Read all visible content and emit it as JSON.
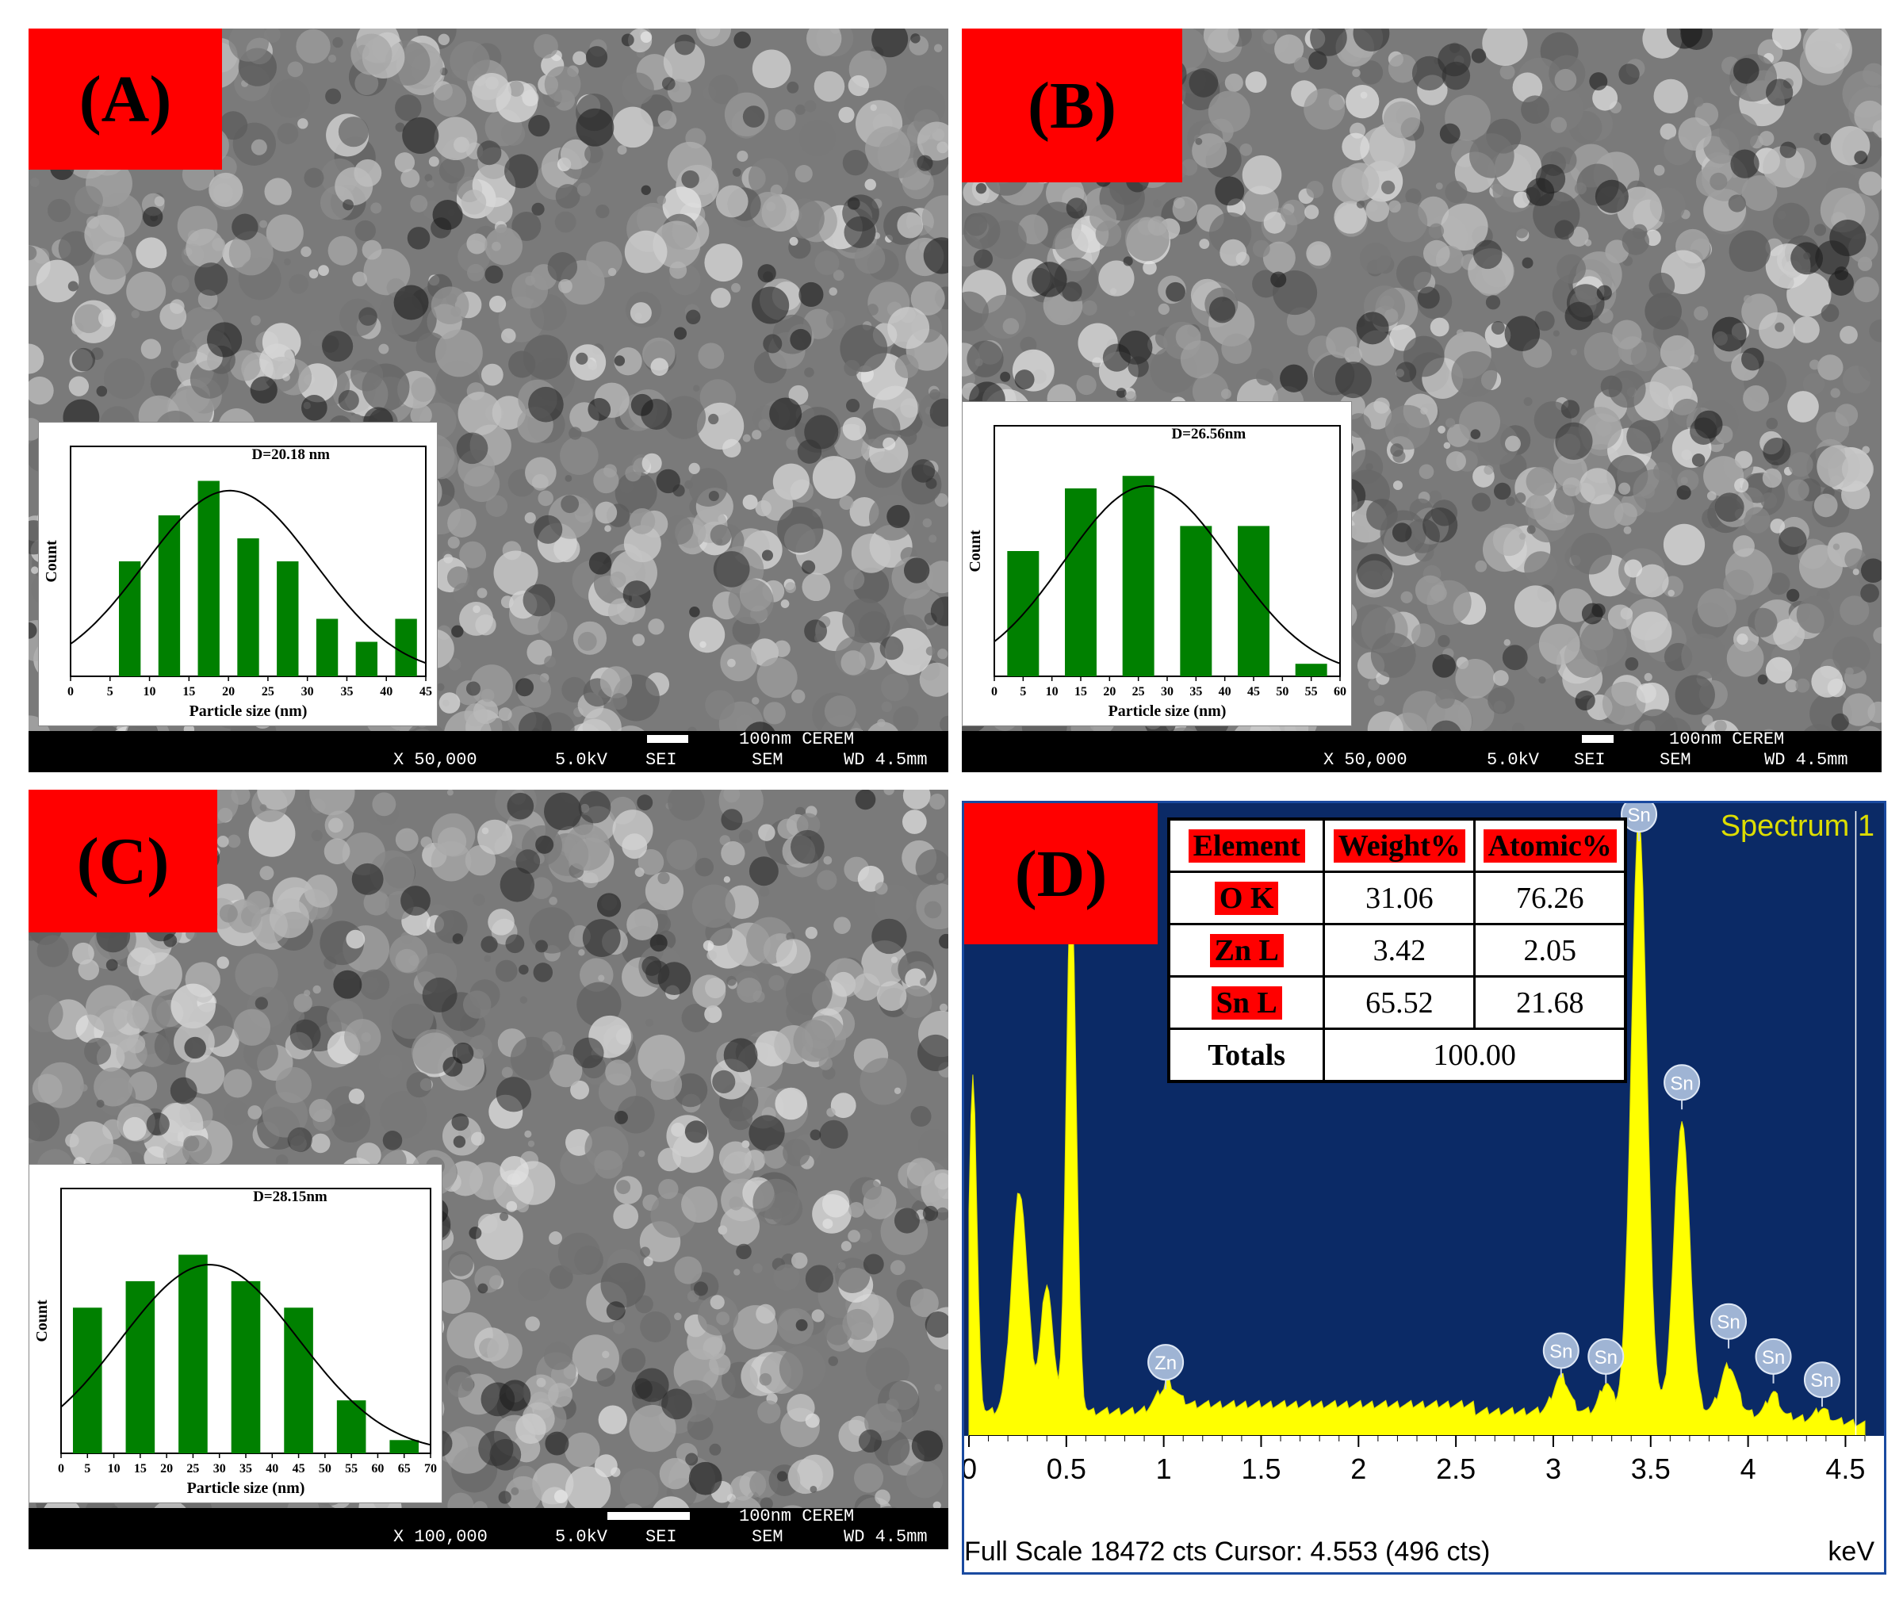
{
  "panels": {
    "A": {
      "label": "(A)",
      "info": {
        "mag": "X 50,000",
        "kv": "5.0kV",
        "det": "SEI",
        "mode": "SEM",
        "wd": "WD 4.5mm",
        "scale": "100nm CEREM"
      },
      "inset_label": "D=20.18 nm"
    },
    "B": {
      "label": "(B)",
      "info": {
        "mag": "X 50,000",
        "kv": "5.0kV",
        "det": "SEI",
        "mode": "SEM",
        "wd": "WD 4.5mm",
        "scale": "100nm CEREM"
      },
      "inset_label": "D=26.56nm"
    },
    "C": {
      "label": "(C)",
      "info": {
        "mag": "X 100,000",
        "kv": "5.0kV",
        "det": "SEI",
        "mode": "SEM",
        "wd": "WD 4.5mm",
        "scale": "100nm CEREM"
      },
      "inset_label": "D=28.15nm"
    },
    "D": {
      "label": "(D)",
      "spectrum_label": "Spectrum 1",
      "footer": "Full Scale 18472 cts Cursor: 4.553  (496 cts)",
      "unit": "keV",
      "table": {
        "headers": [
          "Element",
          "Weight%",
          "Atomic%"
        ],
        "rows": [
          {
            "element": "O K",
            "weight": "31.06",
            "atomic": "76.26"
          },
          {
            "element": "Zn L",
            "weight": "3.42",
            "atomic": "2.05"
          },
          {
            "element": "Sn L",
            "weight": "65.52",
            "atomic": "21.68"
          }
        ],
        "totals_label": "Totals",
        "totals_value": "100.00"
      }
    }
  },
  "chart_data": [
    {
      "type": "bar",
      "panel": "A",
      "title": "D=20.18 nm",
      "xlabel": "Particle size (nm)",
      "ylabel": "Count",
      "x_ticks": [
        0,
        5,
        10,
        15,
        20,
        25,
        30,
        35,
        40,
        45
      ],
      "xlim": [
        0,
        45
      ],
      "x": [
        7.5,
        12.5,
        17.5,
        22.5,
        27.5,
        32.5,
        37.5,
        42.5
      ],
      "values": [
        5,
        7,
        8.5,
        6,
        5,
        2.5,
        1.5,
        2.5
      ],
      "ylim": [
        0,
        10
      ],
      "bar_color": "#008000",
      "fit": "gaussian",
      "fit_mean": 20.18
    },
    {
      "type": "bar",
      "panel": "B",
      "title": "D=26.56nm",
      "xlabel": "Particle size (nm)",
      "ylabel": "Count",
      "x_ticks": [
        0,
        5,
        10,
        15,
        20,
        25,
        30,
        35,
        40,
        45,
        50,
        55,
        60
      ],
      "xlim": [
        0,
        60
      ],
      "x": [
        5,
        15,
        25,
        35,
        45,
        55
      ],
      "values": [
        5,
        7.5,
        8,
        6,
        6,
        0.5
      ],
      "ylim": [
        0,
        10
      ],
      "bar_color": "#008000",
      "fit": "gaussian",
      "fit_mean": 26.56
    },
    {
      "type": "bar",
      "panel": "C",
      "title": "D=28.15nm",
      "xlabel": "Particle size (nm)",
      "ylabel": "Count",
      "x_ticks": [
        0,
        5,
        10,
        15,
        20,
        25,
        30,
        35,
        40,
        45,
        50,
        55,
        60,
        65,
        70
      ],
      "xlim": [
        0,
        70
      ],
      "x": [
        5,
        15,
        25,
        35,
        45,
        55,
        65
      ],
      "values": [
        5.5,
        6.5,
        7.5,
        6.5,
        5.5,
        2,
        0.5
      ],
      "ylim": [
        0,
        10
      ],
      "bar_color": "#008000",
      "fit": "gaussian",
      "fit_mean": 28.15
    },
    {
      "type": "line",
      "panel": "D",
      "title": "Spectrum 1",
      "xlabel": "keV",
      "x_ticks": [
        0,
        0.5,
        1,
        1.5,
        2,
        2.5,
        3,
        3.5,
        4,
        4.5
      ],
      "xlim": [
        0,
        4.6
      ],
      "ylim": [
        0,
        18472
      ],
      "fill_color": "#ffff00",
      "peaks": [
        {
          "label": "O",
          "x": 0.525
        },
        {
          "label": "Zn",
          "x": 1.01
        },
        {
          "label": "Sn",
          "x": 3.04
        },
        {
          "label": "Sn",
          "x": 3.27
        },
        {
          "label": "Sn",
          "x": 3.44
        },
        {
          "label": "Sn",
          "x": 3.66
        },
        {
          "label": "Sn",
          "x": 3.9
        },
        {
          "label": "Sn",
          "x": 4.13
        },
        {
          "label": "Sn",
          "x": 4.38
        }
      ]
    }
  ]
}
